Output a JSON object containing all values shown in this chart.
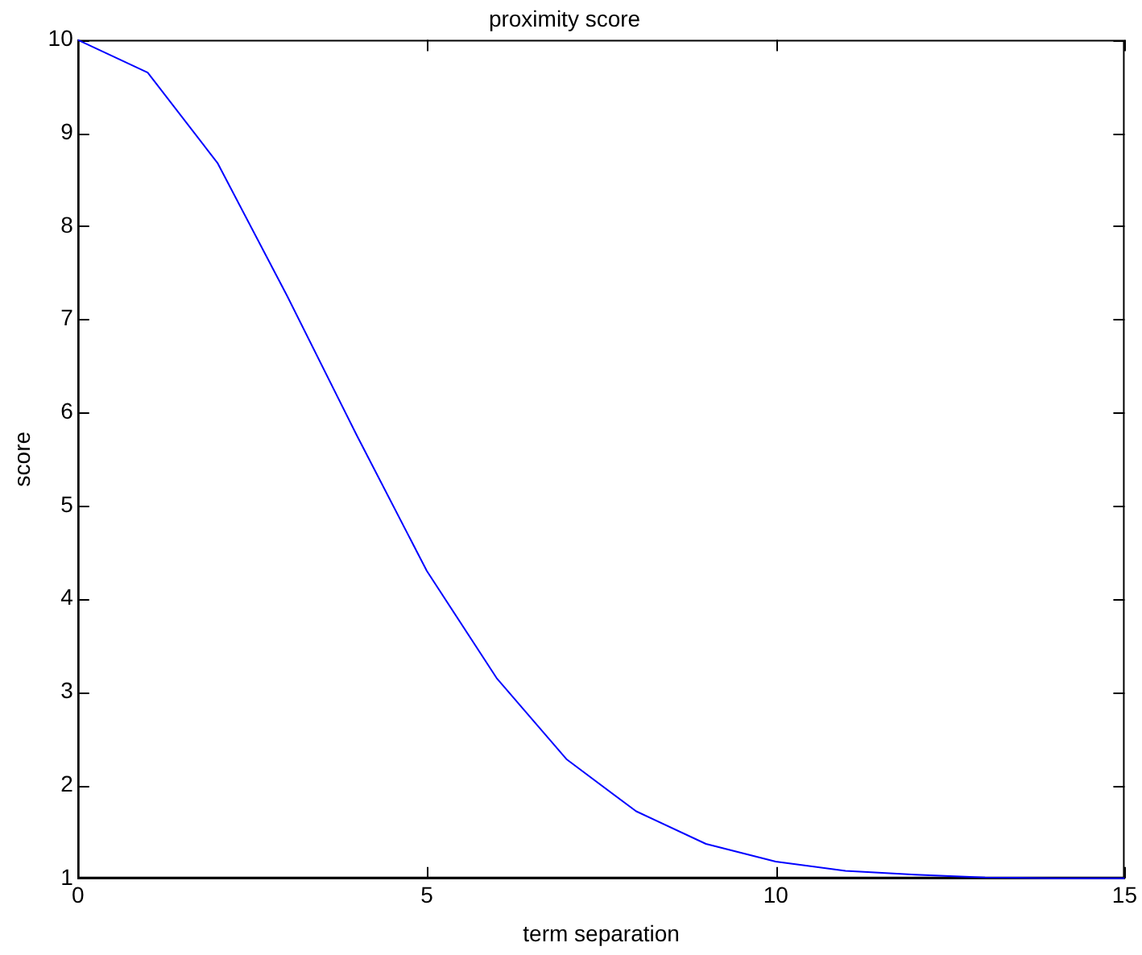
{
  "chart_data": {
    "type": "line",
    "title": "proximity score",
    "xlabel": "term separation",
    "ylabel": "score",
    "x": [
      0,
      1,
      2,
      3,
      4,
      5,
      6,
      7,
      8,
      9,
      10,
      11,
      12,
      13,
      14,
      15
    ],
    "series": [
      {
        "color": "#0000ff",
        "values": [
          10,
          9.65,
          8.68,
          7.25,
          5.75,
          4.3,
          3.15,
          2.28,
          1.72,
          1.37,
          1.18,
          1.08,
          1.04,
          1.01,
          1.0,
          1.0
        ]
      }
    ],
    "xlim": [
      0,
      15
    ],
    "xticks": [
      0,
      5,
      10,
      15
    ],
    "ylim": [
      1,
      10
    ],
    "yticks": [
      1,
      2,
      3,
      4,
      5,
      6,
      7,
      8,
      9,
      10
    ],
    "grid": false,
    "legend": false,
    "marker": "none",
    "line_style": "solid"
  }
}
